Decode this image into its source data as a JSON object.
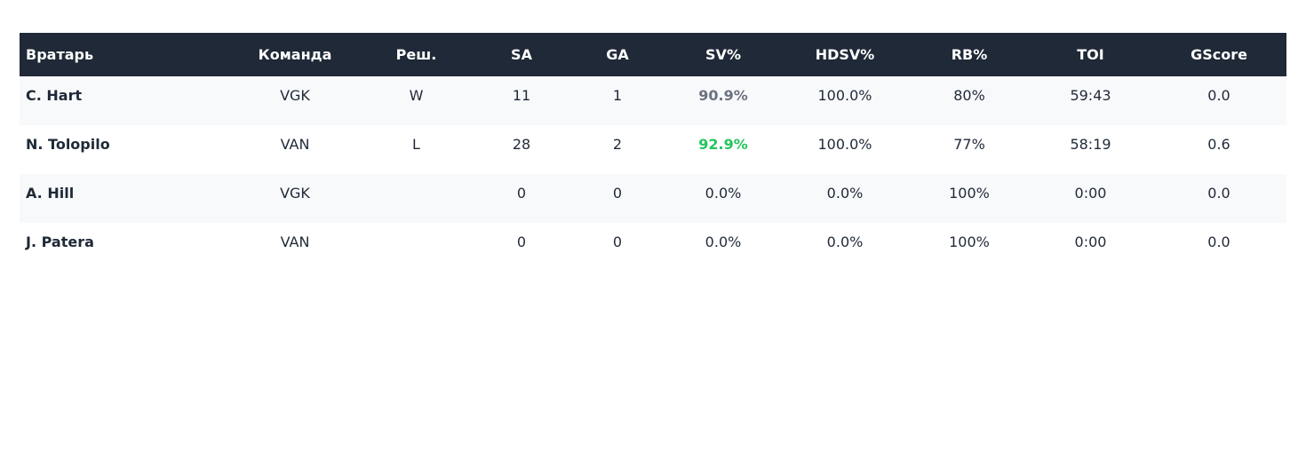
{
  "headers": [
    "Вратарь",
    "Команда",
    "Реш.",
    "SA",
    "GA",
    "SV%",
    "HDSV%",
    "RB%",
    "TOI",
    "GScore"
  ],
  "rows": [
    {
      "name": "C. Hart",
      "team": "VGK",
      "dec": "W",
      "sa": "11",
      "ga": "1",
      "sv": "90.9%",
      "sv_color": "#6b7280",
      "hdsv": "100.0%",
      "rb": "80%",
      "toi": "59:43",
      "gscore": "0.0"
    },
    {
      "name": "N. Tolopilo",
      "team": "VAN",
      "dec": "L",
      "sa": "28",
      "ga": "2",
      "sv": "92.9%",
      "sv_color": "#22c55e",
      "hdsv": "100.0%",
      "rb": "77%",
      "toi": "58:19",
      "gscore": "0.6"
    },
    {
      "name": "A. Hill",
      "team": "VGK",
      "dec": "",
      "sa": "0",
      "ga": "0",
      "sv": "0.0%",
      "sv_color": "",
      "hdsv": "0.0%",
      "rb": "100%",
      "toi": "0:00",
      "gscore": "0.0"
    },
    {
      "name": "J. Patera",
      "team": "VAN",
      "dec": "",
      "sa": "0",
      "ga": "0",
      "sv": "0.0%",
      "sv_color": "",
      "hdsv": "0.0%",
      "rb": "100%",
      "toi": "0:00",
      "gscore": "0.0"
    }
  ]
}
